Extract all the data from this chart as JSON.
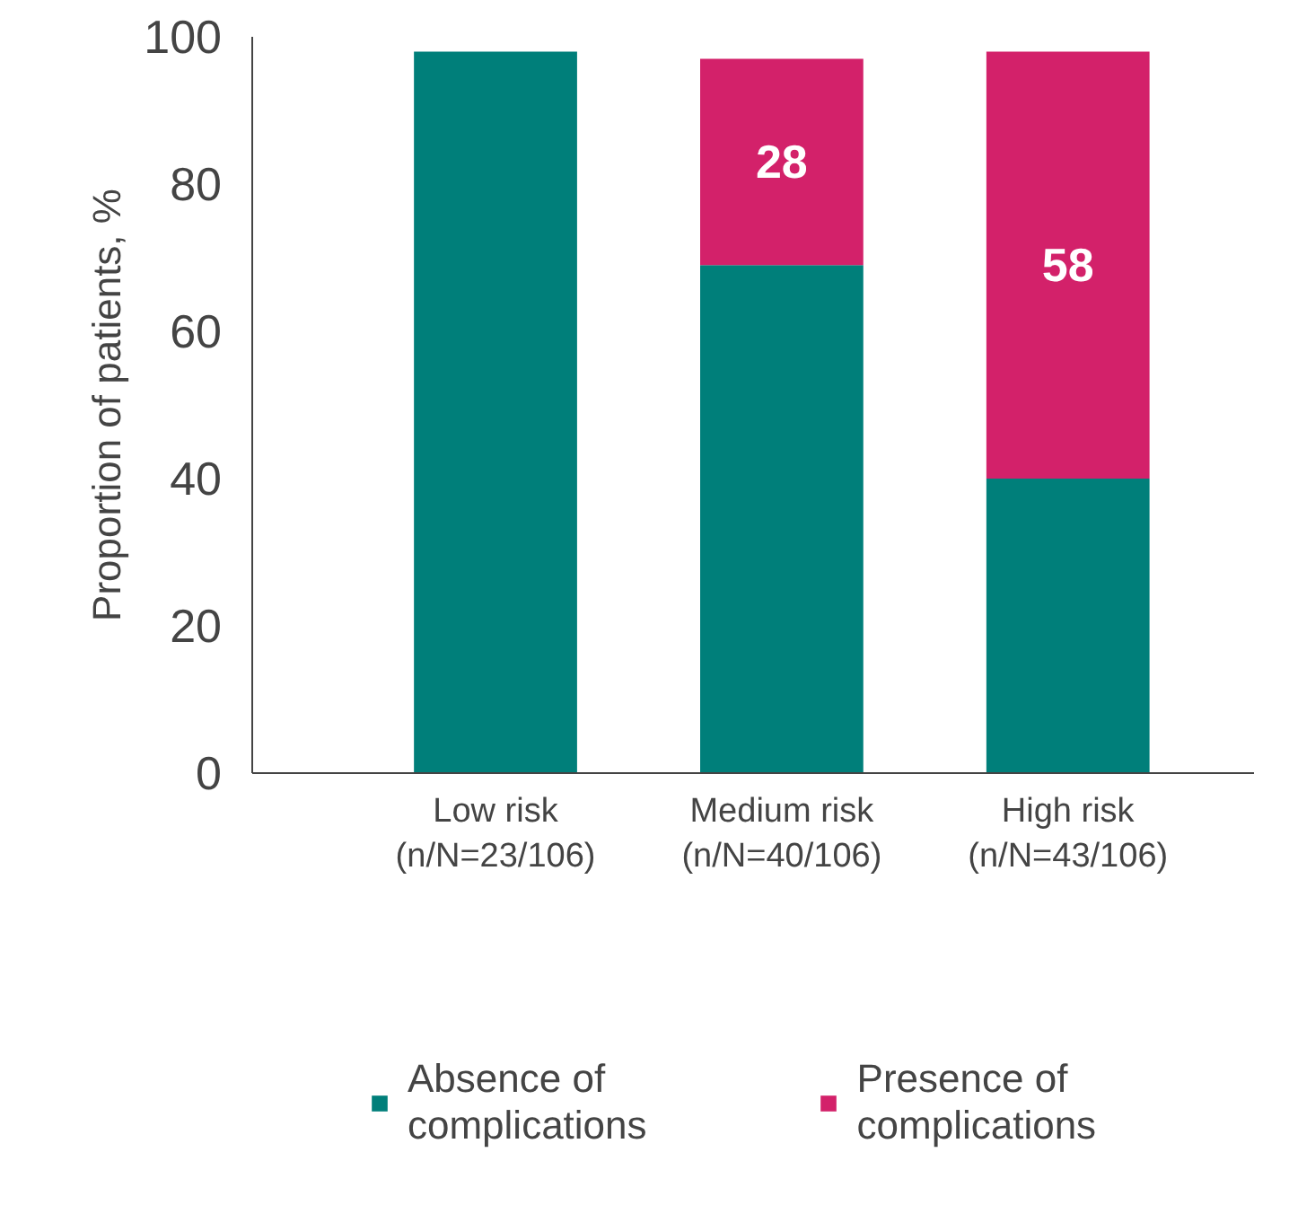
{
  "chart_data": {
    "type": "bar",
    "stacked": true,
    "ylabel": "Proportion of patients, %",
    "categories": [
      "Low risk\n(n/N=23/106)",
      "Medium risk\n(n/N=40/106)",
      "High risk\n(n/N=43/106)"
    ],
    "series": [
      {
        "name": "Absence of\ncomplications",
        "color": "#007f7a",
        "values": [
          98,
          69,
          40
        ]
      },
      {
        "name": "Presence of\ncomplications",
        "color": "#d3216a",
        "values": [
          0,
          28,
          58
        ],
        "value_labels": [
          null,
          "28",
          "58"
        ]
      }
    ],
    "ylim": [
      0,
      100
    ],
    "yticks": [
      0,
      20,
      40,
      60,
      80,
      100
    ],
    "grid": false,
    "legend": "bottom"
  }
}
